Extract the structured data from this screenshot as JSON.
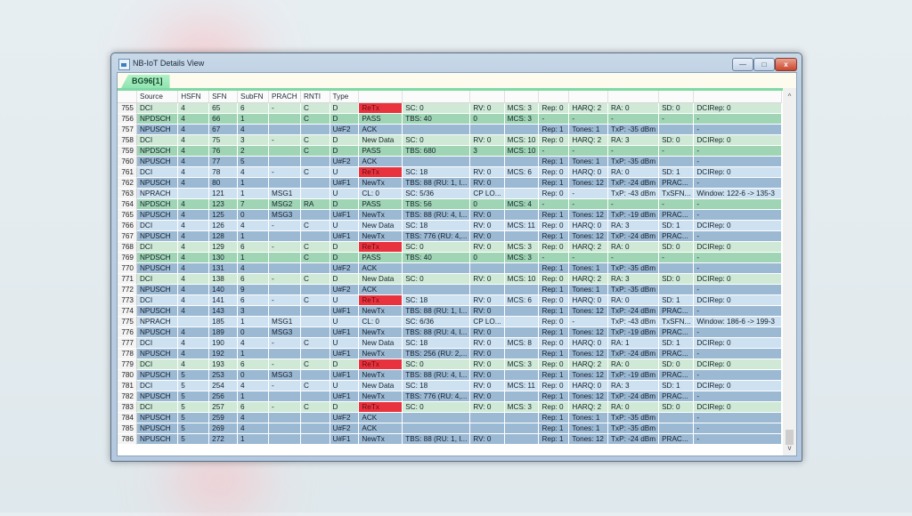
{
  "window": {
    "title": "NB-IoT Details View",
    "icon": "app-chart-icon",
    "controls": {
      "minimize": "—",
      "maximize": "□",
      "close": "x"
    }
  },
  "tab": {
    "label": "BG96[1]"
  },
  "columns": [
    "",
    "Source",
    "HSFN",
    "SFN",
    "SubFN",
    "PRACH",
    "RNTI",
    "Type",
    "",
    "",
    "",
    "",
    "",
    "",
    "",
    "",
    ""
  ],
  "colors": {
    "dci_downlink": "#cfe9d6",
    "npdsch": "#9fd4b4",
    "npusch": "#9cb9d4",
    "dci_uplink_nprach": "#cde1f1",
    "retx": "#e8333f",
    "tab_accent": "#7fd9a4"
  },
  "rows": [
    {
      "cls": "dci-d",
      "c": [
        "755",
        "DCI",
        "4",
        "65",
        "6",
        "-",
        "C",
        "D",
        "ReTx",
        "SC: 0",
        "RV: 0",
        "MCS: 3",
        "Rep: 0",
        "HARQ: 2",
        "RA: 0",
        "SD: 0",
        "DCIRep: 0"
      ]
    },
    {
      "cls": "npdsch",
      "c": [
        "756",
        "NPDSCH",
        "4",
        "66",
        "1",
        "",
        "C",
        "D",
        "PASS",
        "TBS: 40",
        "0",
        "MCS: 3",
        "-",
        "-",
        "-",
        "-",
        "-"
      ]
    },
    {
      "cls": "npusch",
      "c": [
        "757",
        "NPUSCH",
        "4",
        "67",
        "4",
        "",
        "",
        "U#F2",
        "ACK",
        "",
        "",
        "",
        "Rep: 1",
        "Tones: 1",
        "TxP: -35 dBm",
        "",
        "-"
      ]
    },
    {
      "cls": "dci-d",
      "c": [
        "758",
        "DCI",
        "4",
        "75",
        "3",
        "-",
        "C",
        "D",
        "New Data",
        "SC: 0",
        "RV: 0",
        "MCS: 10",
        "Rep: 0",
        "HARQ: 2",
        "RA: 3",
        "SD: 0",
        "DCIRep: 0"
      ]
    },
    {
      "cls": "npdsch",
      "c": [
        "759",
        "NPDSCH",
        "4",
        "76",
        "2",
        "",
        "C",
        "D",
        "PASS",
        "TBS: 680",
        "3",
        "MCS: 10",
        "-",
        "-",
        "-",
        "-",
        "-"
      ]
    },
    {
      "cls": "npusch",
      "c": [
        "760",
        "NPUSCH",
        "4",
        "77",
        "5",
        "",
        "",
        "U#F2",
        "ACK",
        "",
        "",
        "",
        "Rep: 1",
        "Tones: 1",
        "TxP: -35 dBm",
        "",
        "-"
      ]
    },
    {
      "cls": "light",
      "c": [
        "761",
        "DCI",
        "4",
        "78",
        "4",
        "-",
        "C",
        "U",
        "ReTx",
        "SC: 18",
        "RV: 0",
        "MCS: 6",
        "Rep: 0",
        "HARQ: 0",
        "RA: 0",
        "SD: 1",
        "DCIRep: 0"
      ]
    },
    {
      "cls": "npusch",
      "c": [
        "762",
        "NPUSCH",
        "4",
        "80",
        "1",
        "",
        "",
        "U#F1",
        "NewTx",
        "TBS: 88 (RU: 1, I...",
        "RV: 0",
        "",
        "Rep: 1",
        "Tones: 12",
        "TxP: -24 dBm",
        "PRAC...",
        "-"
      ]
    },
    {
      "cls": "light",
      "c": [
        "763",
        "NPRACH",
        "",
        "121",
        "1",
        "MSG1",
        "",
        "U",
        "CL: 0",
        "SC: 5/36",
        "CP LO...",
        "",
        "Rep: 0",
        "-",
        "TxP: -43 dBm",
        "TxSFN...",
        "Window: 122-6 -> 135-3"
      ]
    },
    {
      "cls": "npdsch",
      "c": [
        "764",
        "NPDSCH",
        "4",
        "123",
        "7",
        "MSG2",
        "RA",
        "D",
        "PASS",
        "TBS: 56",
        "0",
        "MCS: 4",
        "-",
        "-",
        "-",
        "-",
        "-"
      ]
    },
    {
      "cls": "npusch",
      "c": [
        "765",
        "NPUSCH",
        "4",
        "125",
        "0",
        "MSG3",
        "",
        "U#F1",
        "NewTx",
        "TBS: 88 (RU: 4, I...",
        "RV: 0",
        "",
        "Rep: 1",
        "Tones: 12",
        "TxP: -19 dBm",
        "PRAC...",
        "-"
      ]
    },
    {
      "cls": "light",
      "c": [
        "766",
        "DCI",
        "4",
        "126",
        "4",
        "-",
        "C",
        "U",
        "New Data",
        "SC: 18",
        "RV: 0",
        "MCS: 11",
        "Rep: 0",
        "HARQ: 0",
        "RA: 3",
        "SD: 1",
        "DCIRep: 0"
      ]
    },
    {
      "cls": "npusch",
      "c": [
        "767",
        "NPUSCH",
        "4",
        "128",
        "1",
        "",
        "",
        "U#F1",
        "NewTx",
        "TBS: 776 (RU: 4,...",
        "RV: 0",
        "",
        "Rep: 1",
        "Tones: 12",
        "TxP: -24 dBm",
        "PRAC...",
        "-"
      ]
    },
    {
      "cls": "dci-d",
      "c": [
        "768",
        "DCI",
        "4",
        "129",
        "6",
        "-",
        "C",
        "D",
        "ReTx",
        "SC: 0",
        "RV: 0",
        "MCS: 3",
        "Rep: 0",
        "HARQ: 2",
        "RA: 0",
        "SD: 0",
        "DCIRep: 0"
      ]
    },
    {
      "cls": "npdsch",
      "c": [
        "769",
        "NPDSCH",
        "4",
        "130",
        "1",
        "",
        "C",
        "D",
        "PASS",
        "TBS: 40",
        "0",
        "MCS: 3",
        "-",
        "-",
        "-",
        "-",
        "-"
      ]
    },
    {
      "cls": "npusch",
      "c": [
        "770",
        "NPUSCH",
        "4",
        "131",
        "4",
        "",
        "",
        "U#F2",
        "ACK",
        "",
        "",
        "",
        "Rep: 1",
        "Tones: 1",
        "TxP: -35 dBm",
        "",
        "-"
      ]
    },
    {
      "cls": "dci-d",
      "c": [
        "771",
        "DCI",
        "4",
        "138",
        "6",
        "-",
        "C",
        "D",
        "New Data",
        "SC: 0",
        "RV: 0",
        "MCS: 10",
        "Rep: 0",
        "HARQ: 2",
        "RA: 3",
        "SD: 0",
        "DCIRep: 0"
      ]
    },
    {
      "cls": "npusch",
      "c": [
        "772",
        "NPUSCH",
        "4",
        "140",
        "9",
        "",
        "",
        "U#F2",
        "ACK",
        "",
        "",
        "",
        "Rep: 1",
        "Tones: 1",
        "TxP: -35 dBm",
        "",
        "-"
      ]
    },
    {
      "cls": "light",
      "c": [
        "773",
        "DCI",
        "4",
        "141",
        "6",
        "-",
        "C",
        "U",
        "ReTx",
        "SC: 18",
        "RV: 0",
        "MCS: 6",
        "Rep: 0",
        "HARQ: 0",
        "RA: 0",
        "SD: 1",
        "DCIRep: 0"
      ]
    },
    {
      "cls": "npusch",
      "c": [
        "774",
        "NPUSCH",
        "4",
        "143",
        "3",
        "",
        "",
        "U#F1",
        "NewTx",
        "TBS: 88 (RU: 1, I...",
        "RV: 0",
        "",
        "Rep: 1",
        "Tones: 12",
        "TxP: -24 dBm",
        "PRAC...",
        "-"
      ]
    },
    {
      "cls": "light",
      "c": [
        "775",
        "NPRACH",
        "",
        "185",
        "1",
        "MSG1",
        "",
        "U",
        "CL: 0",
        "SC: 6/36",
        "CP LO...",
        "",
        "Rep: 0",
        "-",
        "TxP: -43 dBm",
        "TxSFN...",
        "Window: 186-6 -> 199-3"
      ]
    },
    {
      "cls": "npusch",
      "c": [
        "776",
        "NPUSCH",
        "4",
        "189",
        "0",
        "MSG3",
        "",
        "U#F1",
        "NewTx",
        "TBS: 88 (RU: 4, I...",
        "RV: 0",
        "",
        "Rep: 1",
        "Tones: 12",
        "TxP: -19 dBm",
        "PRAC...",
        "-"
      ]
    },
    {
      "cls": "light",
      "c": [
        "777",
        "DCI",
        "4",
        "190",
        "4",
        "-",
        "C",
        "U",
        "New Data",
        "SC: 18",
        "RV: 0",
        "MCS: 8",
        "Rep: 0",
        "HARQ: 0",
        "RA: 1",
        "SD: 1",
        "DCIRep: 0"
      ]
    },
    {
      "cls": "npusch",
      "c": [
        "778",
        "NPUSCH",
        "4",
        "192",
        "1",
        "",
        "",
        "U#F1",
        "NewTx",
        "TBS: 256 (RU: 2,...",
        "RV: 0",
        "",
        "Rep: 1",
        "Tones: 12",
        "TxP: -24 dBm",
        "PRAC...",
        "-"
      ]
    },
    {
      "cls": "dci-d",
      "c": [
        "779",
        "DCI",
        "4",
        "193",
        "6",
        "-",
        "C",
        "D",
        "ReTx",
        "SC: 0",
        "RV: 0",
        "MCS: 3",
        "Rep: 0",
        "HARQ: 2",
        "RA: 0",
        "SD: 0",
        "DCIRep: 0"
      ]
    },
    {
      "cls": "npusch",
      "c": [
        "780",
        "NPUSCH",
        "5",
        "253",
        "0",
        "MSG3",
        "",
        "U#F1",
        "NewTx",
        "TBS: 88 (RU: 4, I...",
        "RV: 0",
        "",
        "Rep: 1",
        "Tones: 12",
        "TxP: -19 dBm",
        "PRAC...",
        "-"
      ]
    },
    {
      "cls": "light",
      "c": [
        "781",
        "DCI",
        "5",
        "254",
        "4",
        "-",
        "C",
        "U",
        "New Data",
        "SC: 18",
        "RV: 0",
        "MCS: 11",
        "Rep: 0",
        "HARQ: 0",
        "RA: 3",
        "SD: 1",
        "DCIRep: 0"
      ]
    },
    {
      "cls": "npusch",
      "c": [
        "782",
        "NPUSCH",
        "5",
        "256",
        "1",
        "",
        "",
        "U#F1",
        "NewTx",
        "TBS: 776 (RU: 4,...",
        "RV: 0",
        "",
        "Rep: 1",
        "Tones: 12",
        "TxP: -24 dBm",
        "PRAC...",
        "-"
      ]
    },
    {
      "cls": "dci-d",
      "c": [
        "783",
        "DCI",
        "5",
        "257",
        "6",
        "-",
        "C",
        "D",
        "ReTx",
        "SC: 0",
        "RV: 0",
        "MCS: 3",
        "Rep: 0",
        "HARQ: 2",
        "RA: 0",
        "SD: 0",
        "DCIRep: 0"
      ]
    },
    {
      "cls": "npusch",
      "c": [
        "784",
        "NPUSCH",
        "5",
        "259",
        "4",
        "",
        "",
        "U#F2",
        "ACK",
        "",
        "",
        "",
        "Rep: 1",
        "Tones: 1",
        "TxP: -35 dBm",
        "",
        "-"
      ]
    },
    {
      "cls": "npusch",
      "c": [
        "785",
        "NPUSCH",
        "5",
        "269",
        "4",
        "",
        "",
        "U#F2",
        "ACK",
        "",
        "",
        "",
        "Rep: 1",
        "Tones: 1",
        "TxP: -35 dBm",
        "",
        "-"
      ]
    },
    {
      "cls": "npusch",
      "c": [
        "786",
        "NPUSCH",
        "5",
        "272",
        "1",
        "",
        "",
        "U#F1",
        "NewTx",
        "TBS: 88 (RU: 1, I...",
        "RV: 0",
        "",
        "Rep: 1",
        "Tones: 12",
        "TxP: -24 dBm",
        "PRAC...",
        "-"
      ]
    }
  ],
  "scrollbar": {
    "up": "^",
    "down": "v"
  }
}
